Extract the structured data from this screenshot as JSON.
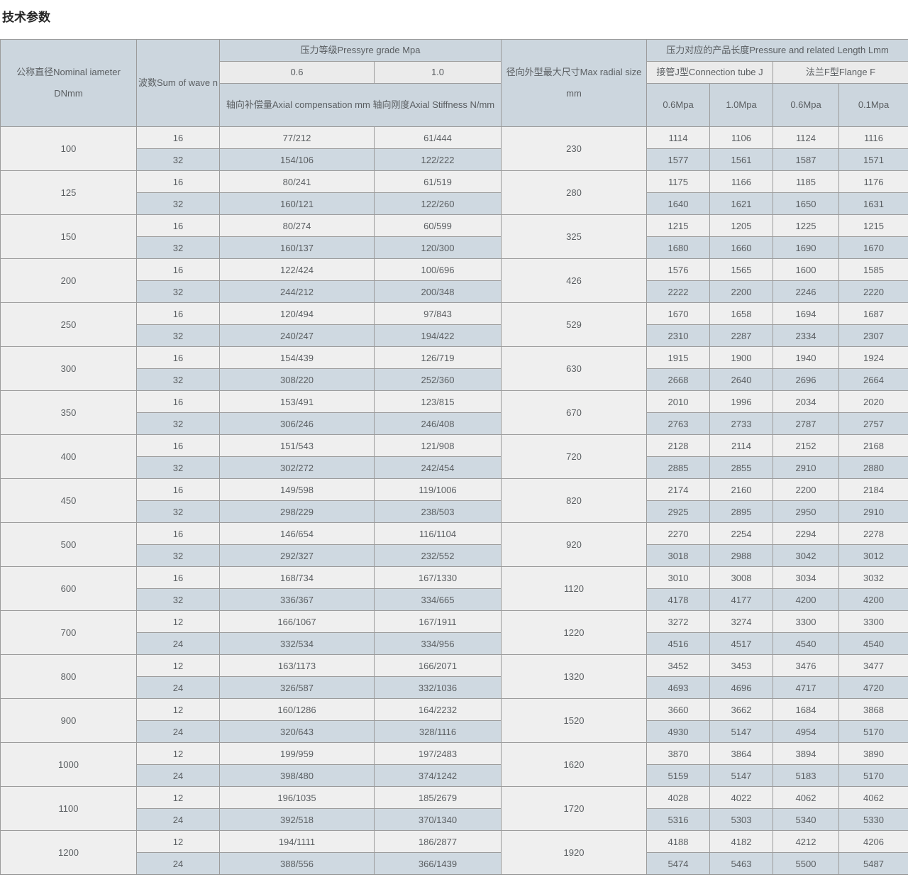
{
  "page_title": "技术参数",
  "colors": {
    "header_bg": "#ccd6de",
    "subheader_bg": "#ebebeb",
    "row_light_bg": "#efefef",
    "row_accent_bg": "#cfd9e1",
    "border": "#9b9b9b",
    "text": "#5a5e61",
    "title_text": "#262626"
  },
  "table": {
    "header": {
      "nominal_diameter": "公称直径Nominal iameter DNmm",
      "wave_count": "波数Sum of wave n",
      "pressure_grade": "压力等级Pressyre grade Mpa",
      "grade_06": "0.6",
      "grade_10": "1.0",
      "axial_note": "轴向补偿量Axial compensation mm 轴向刚度Axial Stiffness N/mm",
      "max_radial": "径向外型最大尺寸Max radial size mm",
      "pressure_length": "压力对应的产品长度Pressure and related Length Lmm",
      "connection_tube": "接管J型Connection tube J",
      "flange": "法兰F型Flange F",
      "tube_06": "0.6Mpa",
      "tube_10": "1.0Mpa",
      "flange_06": "0.6Mpa",
      "flange_01": "0.1Mpa"
    },
    "rows": [
      {
        "dn": "100",
        "radial": "230",
        "sub": [
          {
            "n": "16",
            "c06": "77/212",
            "c10": "61/444",
            "j06": "1114",
            "j10": "1106",
            "f06": "1124",
            "f01": "1116"
          },
          {
            "n": "32",
            "c06": "154/106",
            "c10": "122/222",
            "j06": "1577",
            "j10": "1561",
            "f06": "1587",
            "f01": "1571"
          }
        ]
      },
      {
        "dn": "125",
        "radial": "280",
        "sub": [
          {
            "n": "16",
            "c06": "80/241",
            "c10": "61/519",
            "j06": "1175",
            "j10": "1166",
            "f06": "1185",
            "f01": "1176"
          },
          {
            "n": "32",
            "c06": "160/121",
            "c10": "122/260",
            "j06": "1640",
            "j10": "1621",
            "f06": "1650",
            "f01": "1631"
          }
        ]
      },
      {
        "dn": "150",
        "radial": "325",
        "sub": [
          {
            "n": "16",
            "c06": "80/274",
            "c10": "60/599",
            "j06": "1215",
            "j10": "1205",
            "f06": "1225",
            "f01": "1215"
          },
          {
            "n": "32",
            "c06": "160/137",
            "c10": "120/300",
            "j06": "1680",
            "j10": "1660",
            "f06": "1690",
            "f01": "1670"
          }
        ]
      },
      {
        "dn": "200",
        "radial": "426",
        "sub": [
          {
            "n": "16",
            "c06": "122/424",
            "c10": "100/696",
            "j06": "1576",
            "j10": "1565",
            "f06": "1600",
            "f01": "1585"
          },
          {
            "n": "32",
            "c06": "244/212",
            "c10": "200/348",
            "j06": "2222",
            "j10": "2200",
            "f06": "2246",
            "f01": "2220"
          }
        ]
      },
      {
        "dn": "250",
        "radial": "529",
        "sub": [
          {
            "n": "16",
            "c06": "120/494",
            "c10": "97/843",
            "j06": "1670",
            "j10": "1658",
            "f06": "1694",
            "f01": "1687"
          },
          {
            "n": "32",
            "c06": "240/247",
            "c10": "194/422",
            "j06": "2310",
            "j10": "2287",
            "f06": "2334",
            "f01": "2307"
          }
        ]
      },
      {
        "dn": "300",
        "radial": "630",
        "sub": [
          {
            "n": "16",
            "c06": "154/439",
            "c10": "126/719",
            "j06": "1915",
            "j10": "1900",
            "f06": "1940",
            "f01": "1924"
          },
          {
            "n": "32",
            "c06": "308/220",
            "c10": "252/360",
            "j06": "2668",
            "j10": "2640",
            "f06": "2696",
            "f01": "2664"
          }
        ]
      },
      {
        "dn": "350",
        "radial": "670",
        "sub": [
          {
            "n": "16",
            "c06": "153/491",
            "c10": "123/815",
            "j06": "2010",
            "j10": "1996",
            "f06": "2034",
            "f01": "2020"
          },
          {
            "n": "32",
            "c06": "306/246",
            "c10": "246/408",
            "j06": "2763",
            "j10": "2733",
            "f06": "2787",
            "f01": "2757"
          }
        ]
      },
      {
        "dn": "400",
        "radial": "720",
        "sub": [
          {
            "n": "16",
            "c06": "151/543",
            "c10": "121/908",
            "j06": "2128",
            "j10": "2114",
            "f06": "2152",
            "f01": "2168"
          },
          {
            "n": "32",
            "c06": "302/272",
            "c10": "242/454",
            "j06": "2885",
            "j10": "2855",
            "f06": "2910",
            "f01": "2880"
          }
        ]
      },
      {
        "dn": "450",
        "radial": "820",
        "sub": [
          {
            "n": "16",
            "c06": "149/598",
            "c10": "119/1006",
            "j06": "2174",
            "j10": "2160",
            "f06": "2200",
            "f01": "2184"
          },
          {
            "n": "32",
            "c06": "298/229",
            "c10": "238/503",
            "j06": "2925",
            "j10": "2895",
            "f06": "2950",
            "f01": "2910"
          }
        ]
      },
      {
        "dn": "500",
        "radial": "920",
        "sub": [
          {
            "n": "16",
            "c06": "146/654",
            "c10": "116/1104",
            "j06": "2270",
            "j10": "2254",
            "f06": "2294",
            "f01": "2278"
          },
          {
            "n": "32",
            "c06": "292/327",
            "c10": "232/552",
            "j06": "3018",
            "j10": "2988",
            "f06": "3042",
            "f01": "3012"
          }
        ]
      },
      {
        "dn": "600",
        "radial": "1120",
        "sub": [
          {
            "n": "16",
            "c06": "168/734",
            "c10": "167/1330",
            "j06": "3010",
            "j10": "3008",
            "f06": "3034",
            "f01": "3032"
          },
          {
            "n": "32",
            "c06": "336/367",
            "c10": "334/665",
            "j06": "4178",
            "j10": "4177",
            "f06": "4200",
            "f01": "4200"
          }
        ]
      },
      {
        "dn": "700",
        "radial": "1220",
        "sub": [
          {
            "n": "12",
            "c06": "166/1067",
            "c10": "167/1911",
            "j06": "3272",
            "j10": "3274",
            "f06": "3300",
            "f01": "3300"
          },
          {
            "n": "24",
            "c06": "332/534",
            "c10": "334/956",
            "j06": "4516",
            "j10": "4517",
            "f06": "4540",
            "f01": "4540"
          }
        ]
      },
      {
        "dn": "800",
        "radial": "1320",
        "sub": [
          {
            "n": "12",
            "c06": "163/1173",
            "c10": "166/2071",
            "j06": "3452",
            "j10": "3453",
            "f06": "3476",
            "f01": "3477"
          },
          {
            "n": "24",
            "c06": "326/587",
            "c10": "332/1036",
            "j06": "4693",
            "j10": "4696",
            "f06": "4717",
            "f01": "4720"
          }
        ]
      },
      {
        "dn": "900",
        "radial": "1520",
        "sub": [
          {
            "n": "12",
            "c06": "160/1286",
            "c10": "164/2232",
            "j06": "3660",
            "j10": "3662",
            "f06": "1684",
            "f01": "3868"
          },
          {
            "n": "24",
            "c06": "320/643",
            "c10": "328/1116",
            "j06": "4930",
            "j10": "5147",
            "f06": "4954",
            "f01": "5170"
          }
        ]
      },
      {
        "dn": "1000",
        "radial": "1620",
        "sub": [
          {
            "n": "12",
            "c06": "199/959",
            "c10": "197/2483",
            "j06": "3870",
            "j10": "3864",
            "f06": "3894",
            "f01": "3890"
          },
          {
            "n": "24",
            "c06": "398/480",
            "c10": "374/1242",
            "j06": "5159",
            "j10": "5147",
            "f06": "5183",
            "f01": "5170"
          }
        ]
      },
      {
        "dn": "1100",
        "radial": "1720",
        "sub": [
          {
            "n": "12",
            "c06": "196/1035",
            "c10": "185/2679",
            "j06": "4028",
            "j10": "4022",
            "f06": "4062",
            "f01": "4062"
          },
          {
            "n": "24",
            "c06": "392/518",
            "c10": "370/1340",
            "j06": "5316",
            "j10": "5303",
            "f06": "5340",
            "f01": "5330"
          }
        ]
      },
      {
        "dn": "1200",
        "radial": "1920",
        "sub": [
          {
            "n": "12",
            "c06": "194/1111",
            "c10": "186/2877",
            "j06": "4188",
            "j10": "4182",
            "f06": "4212",
            "f01": "4206"
          },
          {
            "n": "24",
            "c06": "388/556",
            "c10": "366/1439",
            "j06": "5474",
            "j10": "5463",
            "f06": "5500",
            "f01": "5487"
          }
        ]
      }
    ]
  }
}
